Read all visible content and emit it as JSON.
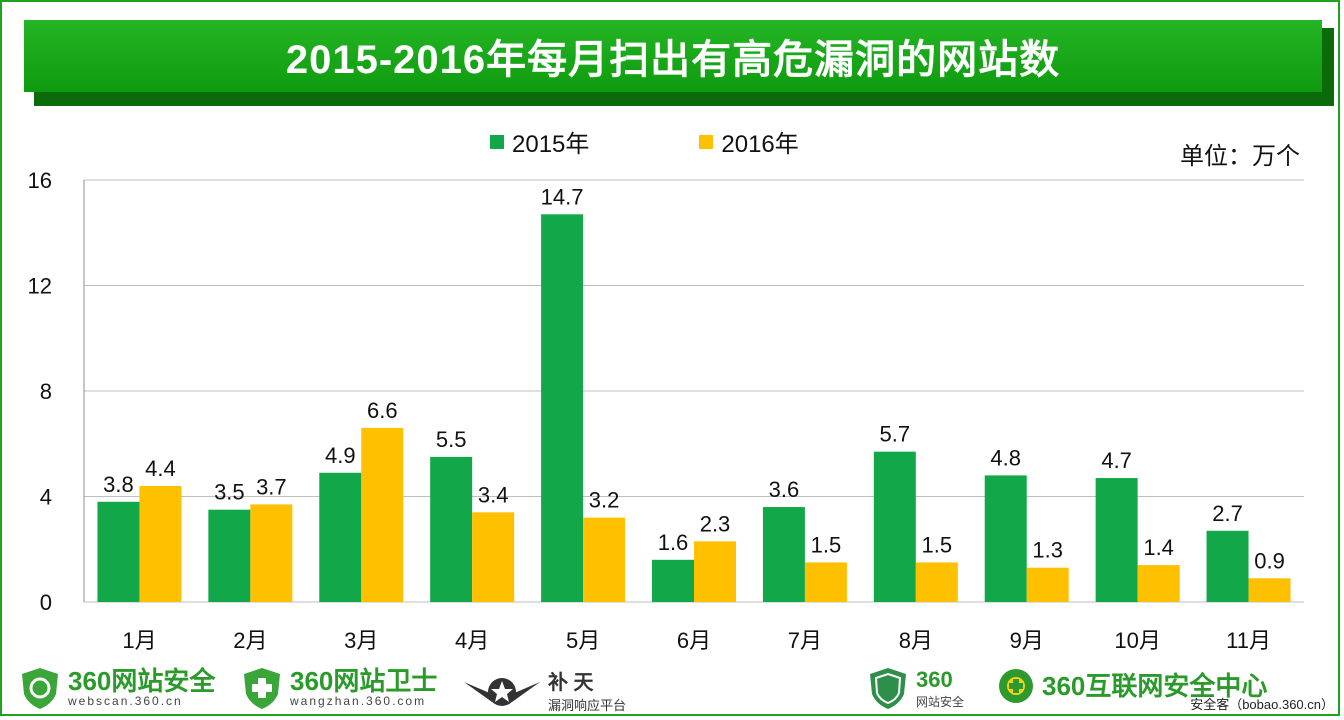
{
  "title": "2015-2016年每月扫出有高危漏洞的网站数",
  "unit_label": "单位：万个",
  "chart_data": {
    "type": "bar",
    "title": "2015-2016年每月扫出有高危漏洞的网站数",
    "categories": [
      "1月",
      "2月",
      "3月",
      "4月",
      "5月",
      "6月",
      "7月",
      "8月",
      "9月",
      "10月",
      "11月"
    ],
    "series": [
      {
        "name": "2015年",
        "color": "#12a84a",
        "values": [
          3.8,
          3.5,
          4.9,
          5.5,
          14.7,
          1.6,
          3.6,
          5.7,
          4.8,
          4.7,
          2.7
        ]
      },
      {
        "name": "2016年",
        "color": "#ffc000",
        "values": [
          4.4,
          3.7,
          6.6,
          3.4,
          3.2,
          2.3,
          1.5,
          1.5,
          1.3,
          1.4,
          0.9
        ]
      }
    ],
    "ylim": [
      0,
      16
    ],
    "yticks": [
      0,
      4,
      8,
      12,
      16
    ],
    "xlabel": "",
    "ylabel": "单位：万个",
    "grid": true,
    "legend": "top-center"
  },
  "footer": {
    "logos": [
      {
        "name": "360网站安全",
        "sub": "webscan.360.cn"
      },
      {
        "name": "360网站卫士",
        "sub": "wangzhan.360.com"
      },
      {
        "name": "补 天",
        "sub": "漏洞响应平台"
      },
      {
        "name": "360",
        "sub": "网站安全"
      },
      {
        "name": "360互联网安全中心",
        "sub": ""
      }
    ],
    "credit": "安全客（bobao.360.cn）"
  },
  "colors": {
    "brand_green": "#1fa31f",
    "title_shadow": "#0b6b0b"
  }
}
